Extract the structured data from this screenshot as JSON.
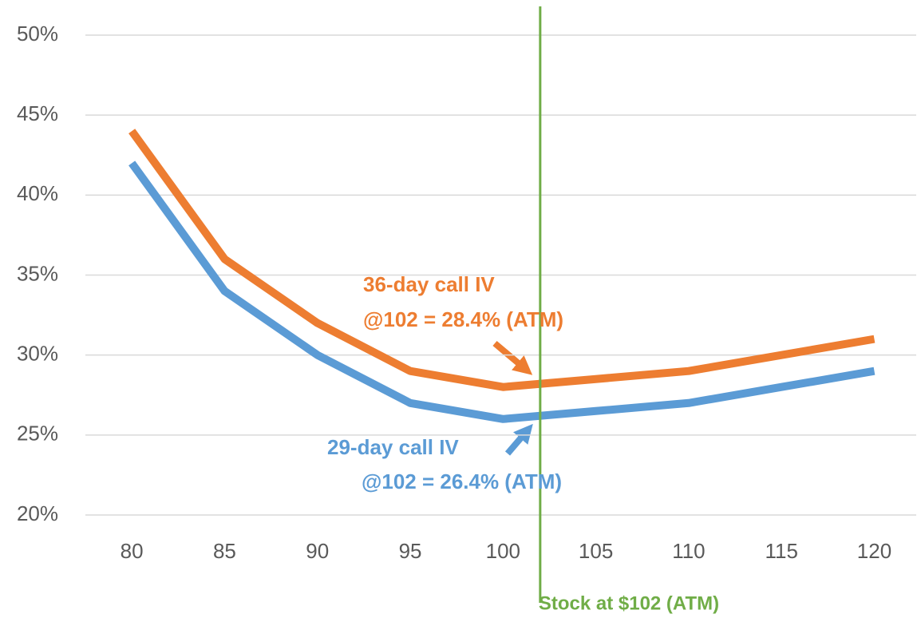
{
  "chart_data": {
    "type": "line",
    "x": [
      80,
      85,
      90,
      95,
      100,
      105,
      110,
      115,
      120
    ],
    "xlim": [
      77.5,
      122.3
    ],
    "xticks": [
      80,
      85,
      90,
      95,
      100,
      105,
      110,
      115,
      120
    ],
    "ylim": [
      20,
      50
    ],
    "yticks": [
      {
        "value": 20,
        "label": "20%"
      },
      {
        "value": 25,
        "label": "25%"
      },
      {
        "value": 30,
        "label": "30%"
      },
      {
        "value": 35,
        "label": "35%"
      },
      {
        "value": 40,
        "label": "40%"
      },
      {
        "value": 45,
        "label": "45%"
      },
      {
        "value": 50,
        "label": "50%"
      }
    ],
    "grid": true,
    "series": [
      {
        "color": "#5b9bd5",
        "values": [
          42,
          34,
          30,
          27,
          26,
          26.5,
          27,
          28,
          29
        ]
      },
      {
        "color": "#ed7d31",
        "values": [
          44,
          36,
          32,
          29,
          28,
          28.5,
          29,
          30,
          31
        ]
      }
    ],
    "vline": {
      "x": 102,
      "label": "Stock at $102 (ATM)",
      "color": "#70ad47"
    },
    "annotations": [
      {
        "text": "36-day call IV",
        "color": "#ed7d31"
      },
      {
        "text": "@102 = 28.4% (ATM)",
        "color": "#ed7d31"
      },
      {
        "text": "29-day call IV",
        "color": "#5b9bd5"
      },
      {
        "text": "@102 = 26.4% (ATM)",
        "color": "#5b9bd5"
      }
    ]
  }
}
